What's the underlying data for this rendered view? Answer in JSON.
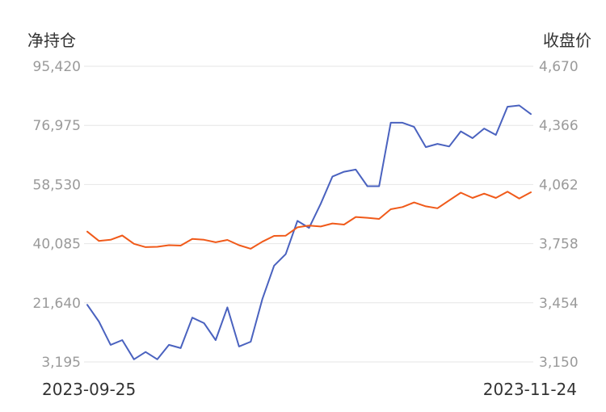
{
  "chart_data": {
    "type": "line",
    "dual_axis": true,
    "left_axis": {
      "title": "净持仓",
      "range": [
        3195,
        95420
      ],
      "ticks": [
        "95,420",
        "76,975",
        "58,530",
        "40,085",
        "21,640",
        "3,195"
      ]
    },
    "right_axis": {
      "title": "收盘价",
      "range": [
        3150,
        4670
      ],
      "ticks": [
        "4,670",
        "4,366",
        "4,062",
        "3,758",
        "3,454",
        "3,150"
      ]
    },
    "x_labels": {
      "start": "2023-09-25",
      "end": "2023-11-24"
    },
    "grid": true,
    "legend": "none",
    "series": [
      {
        "axis": "left",
        "color": "#4a62bf",
        "values": [
          21000,
          15800,
          8500,
          10000,
          4000,
          6300,
          4000,
          8500,
          7500,
          17000,
          15300,
          10000,
          20200,
          8000,
          9500,
          22800,
          33200,
          36800,
          47200,
          45000,
          52500,
          61000,
          62500,
          63200,
          58000,
          58000,
          77800,
          77800,
          76500,
          70200,
          71200,
          70400,
          75100,
          73000,
          76000,
          74000,
          82800,
          83200,
          80500
        ]
      },
      {
        "axis": "right",
        "color": "#f05a1a",
        "values": [
          3820,
          3772,
          3778,
          3800,
          3757,
          3740,
          3742,
          3750,
          3748,
          3782,
          3778,
          3765,
          3777,
          3750,
          3732,
          3768,
          3798,
          3799,
          3842,
          3851,
          3846,
          3862,
          3856,
          3895,
          3891,
          3885,
          3935,
          3946,
          3970,
          3950,
          3940,
          3980,
          4020,
          3993,
          4015,
          3993,
          4025,
          3990,
          4022
        ]
      }
    ]
  }
}
